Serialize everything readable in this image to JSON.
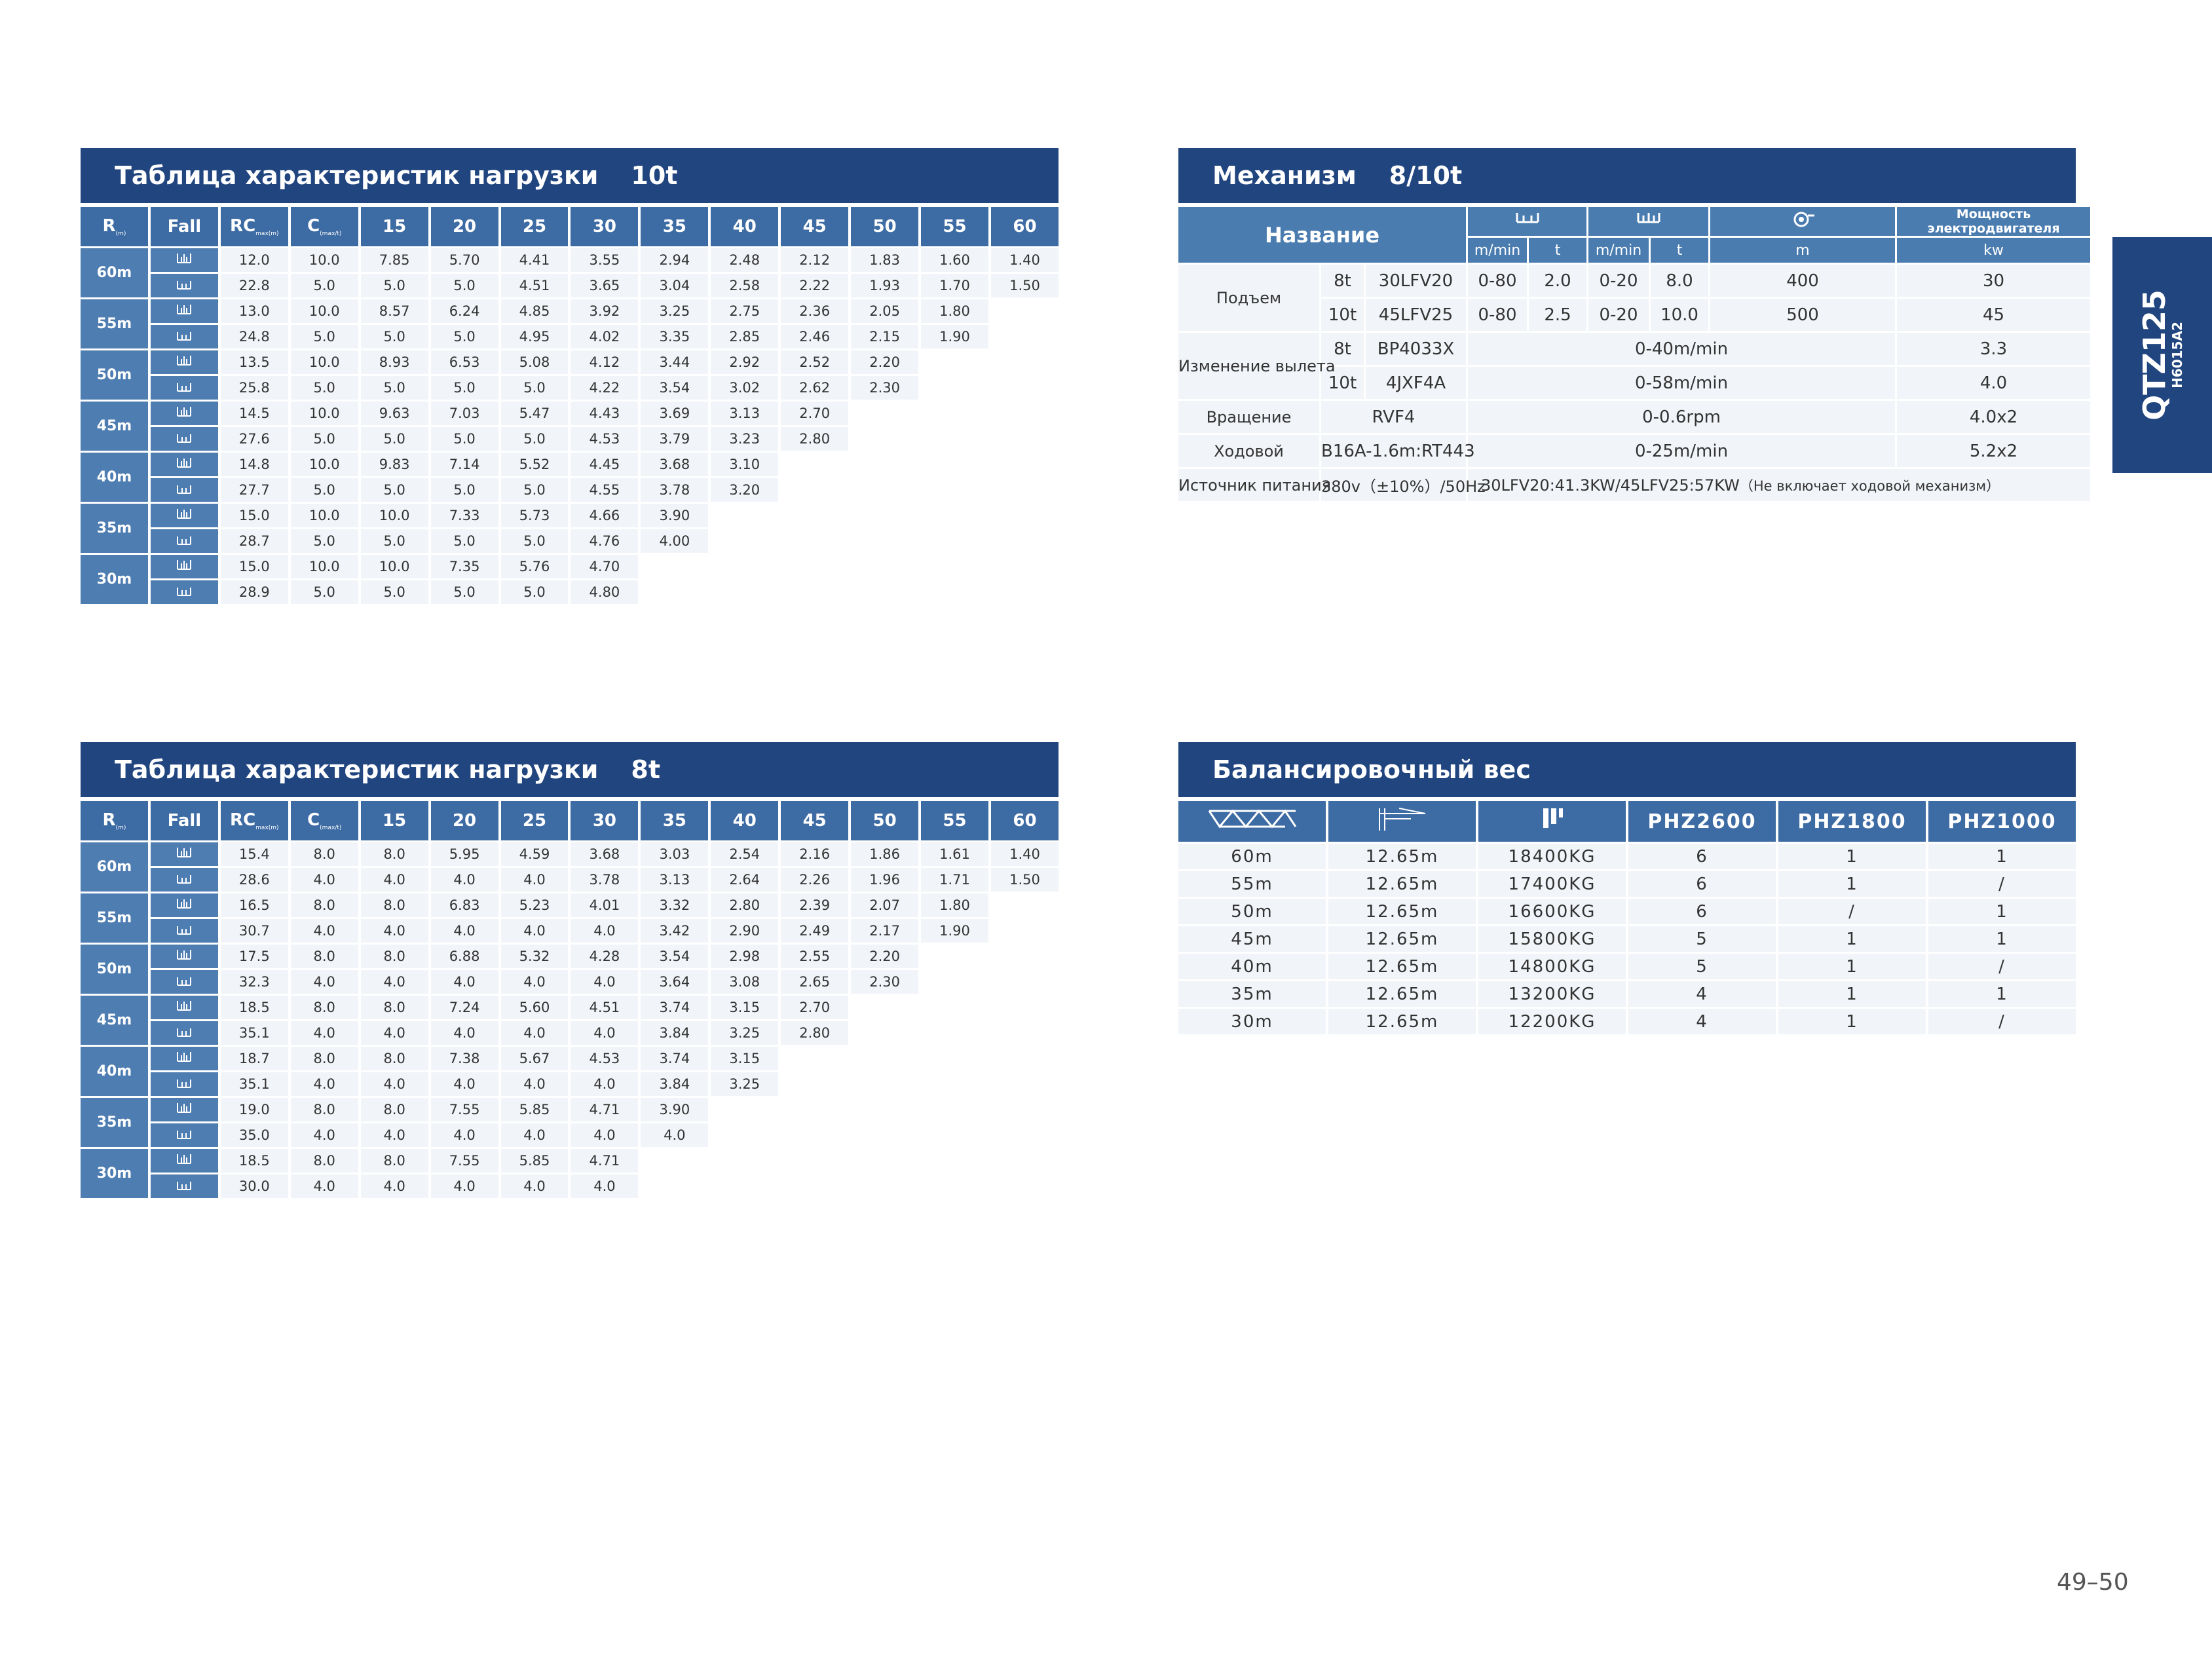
{
  "load_tables": [
    {
      "title": "Таблица характеристик нагрузки",
      "capacity": "10t",
      "header": [
        {
          "text": "R",
          "sub": "(m)"
        },
        "Fall",
        {
          "text": "RC",
          "sub": "max(m)"
        },
        {
          "text": "C",
          "sub": "(max/t)"
        },
        "15",
        "20",
        "25",
        "30",
        "35",
        "40",
        "45",
        "50",
        "55",
        "60"
      ],
      "rows": [
        {
          "radius": "60m",
          "lines": [
            [
              "12.0",
              "10.0",
              "7.85",
              "5.70",
              "4.41",
              "3.55",
              "2.94",
              "2.48",
              "2.12",
              "1.83",
              "1.60",
              "1.40"
            ],
            [
              "22.8",
              "5.0",
              "5.0",
              "5.0",
              "4.51",
              "3.65",
              "3.04",
              "2.58",
              "2.22",
              "1.93",
              "1.70",
              "1.50"
            ]
          ]
        },
        {
          "radius": "55m",
          "lines": [
            [
              "13.0",
              "10.0",
              "8.57",
              "6.24",
              "4.85",
              "3.92",
              "3.25",
              "2.75",
              "2.36",
              "2.05",
              "1.80"
            ],
            [
              "24.8",
              "5.0",
              "5.0",
              "5.0",
              "4.95",
              "4.02",
              "3.35",
              "2.85",
              "2.46",
              "2.15",
              "1.90"
            ]
          ]
        },
        {
          "radius": "50m",
          "lines": [
            [
              "13.5",
              "10.0",
              "8.93",
              "6.53",
              "5.08",
              "4.12",
              "3.44",
              "2.92",
              "2.52",
              "2.20"
            ],
            [
              "25.8",
              "5.0",
              "5.0",
              "5.0",
              "5.0",
              "4.22",
              "3.54",
              "3.02",
              "2.62",
              "2.30"
            ]
          ]
        },
        {
          "radius": "45m",
          "lines": [
            [
              "14.5",
              "10.0",
              "9.63",
              "7.03",
              "5.47",
              "4.43",
              "3.69",
              "3.13",
              "2.70"
            ],
            [
              "27.6",
              "5.0",
              "5.0",
              "5.0",
              "5.0",
              "4.53",
              "3.79",
              "3.23",
              "2.80"
            ]
          ]
        },
        {
          "radius": "40m",
          "lines": [
            [
              "14.8",
              "10.0",
              "9.83",
              "7.14",
              "5.52",
              "4.45",
              "3.68",
              "3.10"
            ],
            [
              "27.7",
              "5.0",
              "5.0",
              "5.0",
              "5.0",
              "4.55",
              "3.78",
              "3.20"
            ]
          ]
        },
        {
          "radius": "35m",
          "lines": [
            [
              "15.0",
              "10.0",
              "10.0",
              "7.33",
              "5.73",
              "4.66",
              "3.90"
            ],
            [
              "28.7",
              "5.0",
              "5.0",
              "5.0",
              "5.0",
              "4.76",
              "4.00"
            ]
          ]
        },
        {
          "radius": "30m",
          "lines": [
            [
              "15.0",
              "10.0",
              "10.0",
              "7.35",
              "5.76",
              "4.70"
            ],
            [
              "28.9",
              "5.0",
              "5.0",
              "5.0",
              "5.0",
              "4.80"
            ]
          ]
        }
      ]
    },
    {
      "title": "Таблица характеристик нагрузки",
      "capacity": "8t",
      "header": [
        {
          "text": "R",
          "sub": "(m)"
        },
        "Fall",
        {
          "text": "RC",
          "sub": "max(m)"
        },
        {
          "text": "C",
          "sub": "(max/t)"
        },
        "15",
        "20",
        "25",
        "30",
        "35",
        "40",
        "45",
        "50",
        "55",
        "60"
      ],
      "rows": [
        {
          "radius": "60m",
          "lines": [
            [
              "15.4",
              "8.0",
              "8.0",
              "5.95",
              "4.59",
              "3.68",
              "3.03",
              "2.54",
              "2.16",
              "1.86",
              "1.61",
              "1.40"
            ],
            [
              "28.6",
              "4.0",
              "4.0",
              "4.0",
              "4.0",
              "3.78",
              "3.13",
              "2.64",
              "2.26",
              "1.96",
              "1.71",
              "1.50"
            ]
          ]
        },
        {
          "radius": "55m",
          "lines": [
            [
              "16.5",
              "8.0",
              "8.0",
              "6.83",
              "5.23",
              "4.01",
              "3.32",
              "2.80",
              "2.39",
              "2.07",
              "1.80"
            ],
            [
              "30.7",
              "4.0",
              "4.0",
              "4.0",
              "4.0",
              "4.0",
              "3.42",
              "2.90",
              "2.49",
              "2.17",
              "1.90"
            ]
          ]
        },
        {
          "radius": "50m",
          "lines": [
            [
              "17.5",
              "8.0",
              "8.0",
              "6.88",
              "5.32",
              "4.28",
              "3.54",
              "2.98",
              "2.55",
              "2.20"
            ],
            [
              "32.3",
              "4.0",
              "4.0",
              "4.0",
              "4.0",
              "4.0",
              "3.64",
              "3.08",
              "2.65",
              "2.30"
            ]
          ]
        },
        {
          "radius": "45m",
          "lines": [
            [
              "18.5",
              "8.0",
              "8.0",
              "7.24",
              "5.60",
              "4.51",
              "3.74",
              "3.15",
              "2.70"
            ],
            [
              "35.1",
              "4.0",
              "4.0",
              "4.0",
              "4.0",
              "4.0",
              "3.84",
              "3.25",
              "2.80"
            ]
          ]
        },
        {
          "radius": "40m",
          "lines": [
            [
              "18.7",
              "8.0",
              "8.0",
              "7.38",
              "5.67",
              "4.53",
              "3.74",
              "3.15"
            ],
            [
              "35.1",
              "4.0",
              "4.0",
              "4.0",
              "4.0",
              "4.0",
              "3.84",
              "3.25"
            ]
          ]
        },
        {
          "radius": "35m",
          "lines": [
            [
              "19.0",
              "8.0",
              "8.0",
              "7.55",
              "5.85",
              "4.71",
              "3.90"
            ],
            [
              "35.0",
              "4.0",
              "4.0",
              "4.0",
              "4.0",
              "4.0",
              "4.0"
            ]
          ]
        },
        {
          "radius": "30m",
          "lines": [
            [
              "18.5",
              "8.0",
              "8.0",
              "7.55",
              "5.85",
              "4.71"
            ],
            [
              "30.0",
              "4.0",
              "4.0",
              "4.0",
              "4.0",
              "4.0"
            ]
          ]
        }
      ]
    }
  ],
  "mechanism": {
    "title": "Механизм",
    "capacity": "8/10t",
    "name_header": "Название",
    "motor_power_header": "Мощность электродвигателя",
    "units": [
      "m/min",
      "t",
      "m/min",
      "t",
      "m",
      "kw"
    ],
    "rows": [
      [
        "Подъем",
        "8t",
        "30LFV20",
        "0-80",
        "2.0",
        "0-20",
        "8.0",
        "400",
        "30"
      ],
      [
        "10t",
        "45LFV25",
        "0-80",
        "2.5",
        "0-20",
        "10.0",
        "500",
        "45"
      ],
      [
        "Изменение вылета",
        "8t",
        "BP4033X",
        "0-40m/min",
        "3.3"
      ],
      [
        "10t",
        "4JXF4A",
        "0-58m/min",
        "4.0"
      ],
      [
        "Вращение",
        "RVF4",
        "0-0.6rpm",
        "4.0x2"
      ],
      [
        "Ходовой",
        "B16A-1.6m:RT443",
        "0-25m/min",
        "5.2x2"
      ],
      [
        "Источник питания",
        "380v（±10%）/50Hz",
        "30LFV20:41.3KW/45LFV25:57KW",
        "（Не включает ходовой механизм）"
      ]
    ]
  },
  "balance": {
    "title": "Балансировочный вес",
    "header": [
      "PHZ2600",
      "PHZ1800",
      "PHZ1000"
    ],
    "rows": [
      [
        "60m",
        "12.65m",
        "18400KG",
        "6",
        "1",
        "1"
      ],
      [
        "55m",
        "12.65m",
        "17400KG",
        "6",
        "1",
        "/"
      ],
      [
        "50m",
        "12.65m",
        "16600KG",
        "6",
        "/",
        "1"
      ],
      [
        "45m",
        "12.65m",
        "15800KG",
        "5",
        "1",
        "1"
      ],
      [
        "40m",
        "12.65m",
        "14800KG",
        "5",
        "1",
        "/"
      ],
      [
        "35m",
        "12.65m",
        "13200KG",
        "4",
        "1",
        "1"
      ],
      [
        "30m",
        "12.65m",
        "12200KG",
        "4",
        "1",
        "/"
      ]
    ]
  },
  "side_tab": {
    "model": "QTZ125",
    "code": "H6015A2"
  },
  "page_number": "49–50"
}
